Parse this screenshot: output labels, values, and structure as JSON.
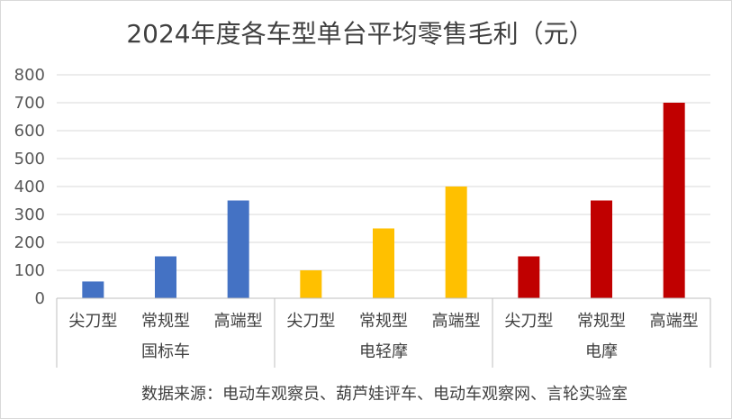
{
  "chart_data": {
    "type": "bar",
    "title": "2024年度各车型单台平均零售毛利（元）",
    "xlabel": "",
    "ylabel": "",
    "ylim": [
      0,
      800
    ],
    "yticks": [
      "0",
      "100",
      "200",
      "300",
      "400",
      "500",
      "600",
      "700",
      "800"
    ],
    "grid": true,
    "legend": "none",
    "groups": [
      {
        "name": "国标车",
        "color": "#4472c4",
        "categories": [
          "尖刀型",
          "常规型",
          "高端型"
        ],
        "values": [
          60,
          150,
          350
        ]
      },
      {
        "name": "电轻摩",
        "color": "#ffc000",
        "categories": [
          "尖刀型",
          "常规型",
          "高端型"
        ],
        "values": [
          100,
          250,
          400
        ]
      },
      {
        "name": "电摩",
        "color": "#c00000",
        "categories": [
          "尖刀型",
          "常规型",
          "高端型"
        ],
        "values": [
          150,
          350,
          700
        ]
      }
    ],
    "source": "数据来源：电动车观察员、葫芦娃评车、电动车观察网、言轮实验室"
  }
}
